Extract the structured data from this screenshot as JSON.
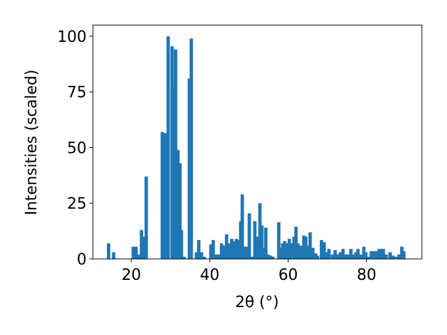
{
  "chart_data": {
    "type": "bar",
    "xlabel": "2θ (°)",
    "ylabel": "Intensities (scaled)",
    "color": "#1f77b4",
    "xlim": [
      10.2,
      94.1
    ],
    "xticks": [
      20,
      40,
      60,
      80
    ],
    "ylim": [
      0,
      105
    ],
    "yticks": [
      0,
      25,
      50,
      75,
      100
    ],
    "x": [
      14.2,
      15.5,
      20.5,
      21.2,
      22.0,
      22.6,
      23.2,
      23.8,
      27.9,
      28.6,
      29.4,
      30.4,
      30.9,
      31.3,
      31.9,
      32.4,
      32.8,
      33.5,
      34.8,
      35.3,
      36.6,
      37.2,
      37.9,
      38.6,
      40.3,
      40.9,
      41.6,
      42.3,
      43.0,
      43.6,
      44.3,
      44.9,
      45.6,
      46.2,
      46.8,
      47.4,
      47.9,
      48.3,
      49.0,
      49.5,
      50.1,
      50.7,
      51.5,
      52.0,
      52.8,
      53.3,
      53.8,
      54.3,
      54.9,
      55.5,
      56.1,
      57.6,
      58.1,
      58.6,
      59.1,
      59.6,
      60.3,
      60.8,
      61.5,
      62.0,
      62.5,
      63.2,
      64.0,
      64.5,
      65.0,
      65.6,
      66.3,
      67.0,
      67.5,
      68.5,
      69.2,
      69.8,
      70.4,
      71.3,
      72.0,
      72.7,
      73.3,
      74.0,
      74.7,
      75.3,
      76.0,
      76.7,
      77.3,
      77.8,
      78.5,
      79.3,
      79.8,
      80.5,
      81.2,
      81.8,
      82.5,
      83.2,
      83.8,
      84.3,
      85.0,
      86.0,
      86.7,
      87.5,
      88.3,
      89.0,
      89.5
    ],
    "values": [
      7,
      3,
      5.5,
      5.5,
      2,
      13,
      10,
      37,
      57,
      56.5,
      100,
      95.5,
      77,
      94,
      49,
      43,
      13,
      1,
      81,
      99,
      3,
      8.5,
      3,
      1,
      6.5,
      8.5,
      2,
      2,
      7,
      6,
      11,
      7,
      9,
      8,
      9,
      8.5,
      17,
      29,
      5.5,
      5.5,
      20.5,
      1,
      17,
      10,
      25,
      15,
      5,
      14,
      2,
      1.5,
      1,
      16.5,
      5,
      7,
      8,
      7,
      9,
      7,
      10,
      14.5,
      7,
      6,
      10.5,
      10,
      6,
      12,
      5,
      2.5,
      1.5,
      8.5,
      7.5,
      3,
      4.5,
      2,
      4,
      2,
      3,
      4.5,
      2,
      2,
      4.5,
      2,
      3,
      4.5,
      2,
      5.5,
      3,
      1,
      3.5,
      3.5,
      3.5,
      4.5,
      4.5,
      4.5,
      2,
      3,
      1.5,
      1,
      2,
      5.5,
      3.5
    ]
  }
}
